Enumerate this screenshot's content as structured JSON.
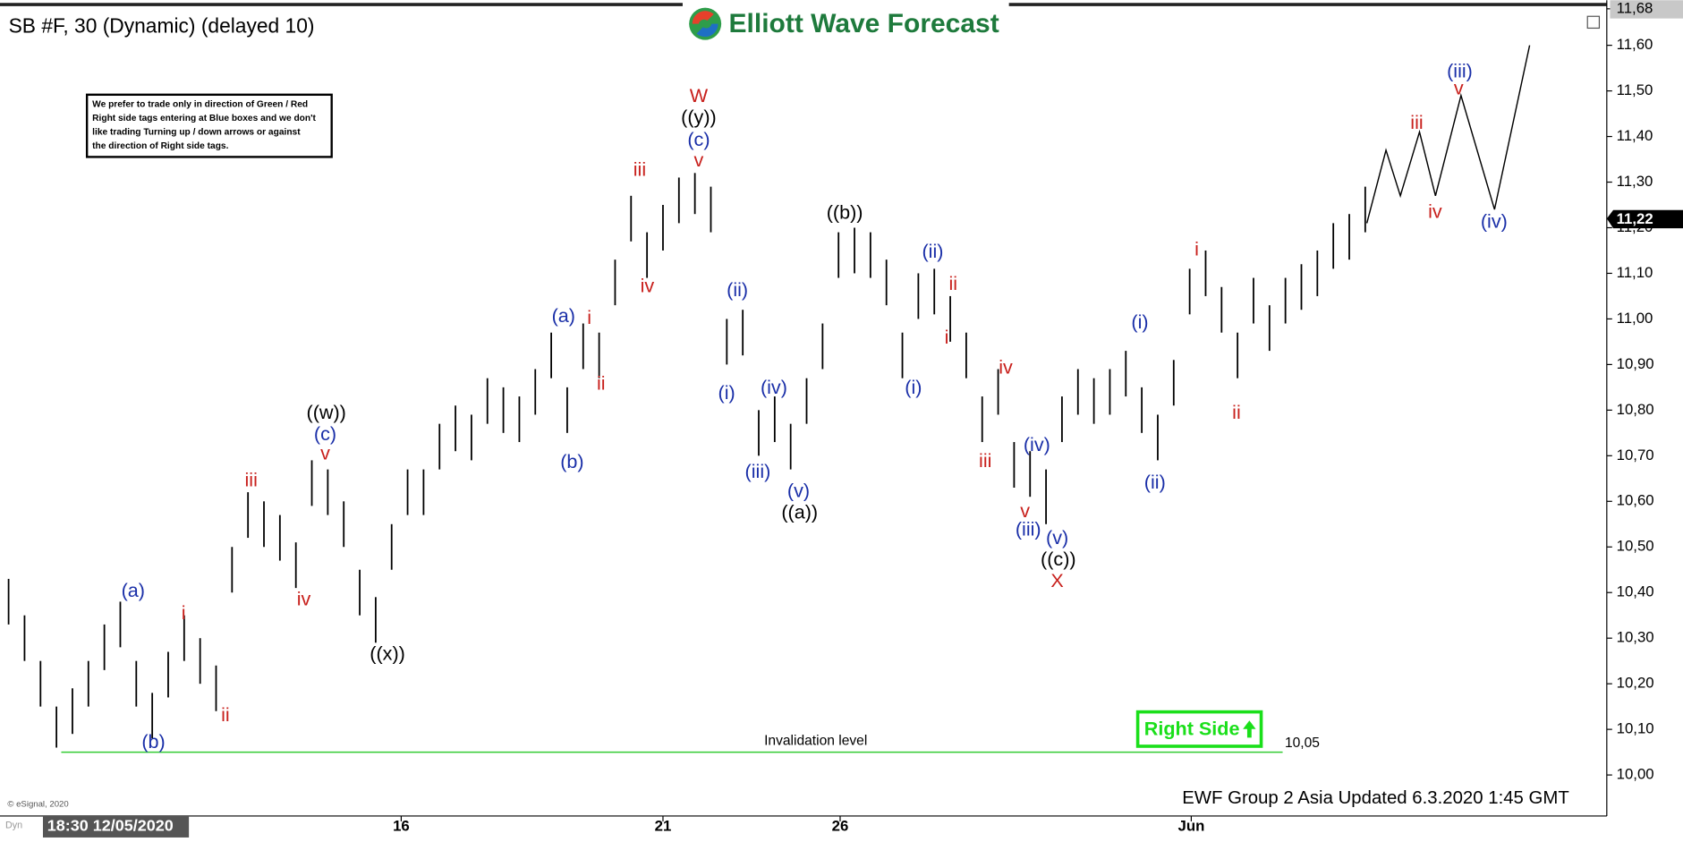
{
  "chart_data": {
    "type": "ohlc",
    "title": "SB #F, 30 (Dynamic) (delayed 10)",
    "logo": "Elliott Wave Forecast",
    "note": [
      "We prefer to trade only in direction of Green / Red",
      "Right side tags entering at Blue boxes and we don't",
      "like trading Turning up / down arrows or against",
      "the direction of Right side tags."
    ],
    "footer": "EWF Group 2 Asia Updated 6.3.2020 1:45 GMT",
    "copyright": "© eSignal, 2020",
    "corner_label": "Dyn",
    "cursor_time": "18:30 12/05/2020",
    "right_side": "Right Side",
    "bar_color": "#000000",
    "high": [
      10.43,
      10.35,
      10.25,
      10.15,
      10.19,
      10.25,
      10.33,
      10.38,
      10.25,
      10.18,
      10.27,
      10.35,
      10.3,
      10.24,
      10.5,
      10.62,
      10.6,
      10.57,
      10.51,
      10.69,
      10.67,
      10.6,
      10.45,
      10.39,
      10.55,
      10.67,
      10.67,
      10.77,
      10.81,
      10.79,
      10.87,
      10.85,
      10.83,
      10.89,
      10.97,
      10.85,
      10.99,
      10.97,
      11.13,
      11.27,
      11.19,
      11.25,
      11.31,
      11.32,
      11.29,
      11.0,
      11.02,
      10.8,
      10.83,
      10.77,
      10.87,
      10.99,
      11.19,
      11.2,
      11.19,
      11.13,
      10.97,
      11.1,
      11.11,
      11.05,
      10.97,
      10.83,
      10.89,
      10.73,
      10.71,
      10.67,
      10.83,
      10.89,
      10.87,
      10.89,
      10.93,
      10.85,
      10.79,
      10.91,
      11.11,
      11.15,
      11.07,
      10.97,
      11.09,
      11.03,
      11.09,
      11.12,
      11.15,
      11.21,
      11.23,
      11.29
    ],
    "low": [
      10.33,
      10.25,
      10.15,
      10.06,
      10.09,
      10.15,
      10.23,
      10.28,
      10.15,
      10.08,
      10.17,
      10.25,
      10.2,
      10.14,
      10.4,
      10.52,
      10.5,
      10.47,
      10.41,
      10.59,
      10.57,
      10.5,
      10.35,
      10.29,
      10.45,
      10.57,
      10.57,
      10.67,
      10.71,
      10.69,
      10.77,
      10.75,
      10.73,
      10.79,
      10.87,
      10.75,
      10.89,
      10.87,
      11.03,
      11.17,
      11.09,
      11.15,
      11.21,
      11.23,
      11.19,
      10.9,
      10.92,
      10.7,
      10.73,
      10.67,
      10.77,
      10.89,
      11.09,
      11.1,
      11.09,
      11.03,
      10.87,
      11.0,
      11.01,
      10.95,
      10.87,
      10.73,
      10.79,
      10.63,
      10.61,
      10.55,
      10.73,
      10.79,
      10.77,
      10.79,
      10.83,
      10.75,
      10.69,
      10.81,
      11.01,
      11.05,
      10.97,
      10.87,
      10.99,
      10.93,
      10.99,
      11.02,
      11.05,
      11.11,
      11.13,
      11.19
    ],
    "projection": {
      "x": [
        85.1,
        86.3,
        87.2,
        88.4,
        89.4,
        91.0,
        93.1,
        95.3
      ],
      "values": [
        11.21,
        11.37,
        11.27,
        11.41,
        11.27,
        11.49,
        11.24,
        11.6
      ]
    },
    "xlim": [
      0,
      100
    ],
    "xticks": [
      {
        "value": 24.6,
        "label": "16"
      },
      {
        "value": 41.0,
        "label": "21"
      },
      {
        "value": 52.1,
        "label": "26"
      },
      {
        "value": 74.1,
        "label": "Jun"
      }
    ],
    "ylim": [
      9.91,
      11.68
    ],
    "yticks": [
      {
        "value": 10.0,
        "label": "10,00"
      },
      {
        "value": 10.1,
        "label": "10,10"
      },
      {
        "value": 10.2,
        "label": "10,20"
      },
      {
        "value": 10.3,
        "label": "10,30"
      },
      {
        "value": 10.4,
        "label": "10,40"
      },
      {
        "value": 10.5,
        "label": "10,50"
      },
      {
        "value": 10.6,
        "label": "10,60"
      },
      {
        "value": 10.7,
        "label": "10,70"
      },
      {
        "value": 10.8,
        "label": "10,80"
      },
      {
        "value": 10.9,
        "label": "10,90"
      },
      {
        "value": 11.0,
        "label": "11,00"
      },
      {
        "value": 11.1,
        "label": "11,10"
      },
      {
        "value": 11.2,
        "label": "11,20"
      },
      {
        "value": 11.3,
        "label": "11,30"
      },
      {
        "value": 11.4,
        "label": "11,40"
      },
      {
        "value": 11.5,
        "label": "11,50"
      },
      {
        "value": 11.6,
        "label": "11,60"
      },
      {
        "value": 11.68,
        "label": "11,68"
      }
    ],
    "current_price": {
      "value": 11.22,
      "label": "11,22"
    },
    "invalidation": {
      "value": 10.05,
      "label": "10,05",
      "text": "Invalidation level",
      "color": "#33cc33"
    },
    "annotations": [
      {
        "text": "(a)",
        "color": "#1a2fa8"
      },
      {
        "text": "(b)",
        "color": "#1a2fa8"
      },
      {
        "text": "i",
        "color": "#c8201c"
      },
      {
        "text": "ii",
        "color": "#c8201c"
      },
      {
        "text": "iii",
        "color": "#c8201c"
      },
      {
        "text": "iv",
        "color": "#c8201c"
      },
      {
        "text": "v",
        "color": "#c8201c"
      },
      {
        "text": "(c)",
        "color": "#1a2fa8"
      },
      {
        "text": "((w))",
        "color": "#000000"
      },
      {
        "text": "((x))",
        "color": "#000000"
      },
      {
        "text": "(a)",
        "color": "#1a2fa8"
      },
      {
        "text": "(b)",
        "color": "#1a2fa8"
      },
      {
        "text": "i",
        "color": "#c8201c"
      },
      {
        "text": "ii",
        "color": "#c8201c"
      },
      {
        "text": "iii",
        "color": "#c8201c"
      },
      {
        "text": "iv",
        "color": "#c8201c"
      },
      {
        "text": "v",
        "color": "#c8201c"
      },
      {
        "text": "(c)",
        "color": "#1a2fa8"
      },
      {
        "text": "((y))",
        "color": "#000000"
      },
      {
        "text": "W",
        "color": "#c8201c"
      },
      {
        "text": "(ii)",
        "color": "#1a2fa8"
      },
      {
        "text": "(i)",
        "color": "#1a2fa8"
      },
      {
        "text": "(iv)",
        "color": "#1a2fa8"
      },
      {
        "text": "(iii)",
        "color": "#1a2fa8"
      },
      {
        "text": "(v)",
        "color": "#1a2fa8"
      },
      {
        "text": "((a))",
        "color": "#000000"
      },
      {
        "text": "((b))",
        "color": "#000000"
      },
      {
        "text": "(ii)",
        "color": "#1a2fa8"
      },
      {
        "text": "ii",
        "color": "#c8201c"
      },
      {
        "text": "i",
        "color": "#c8201c"
      },
      {
        "text": "(i)",
        "color": "#1a2fa8"
      },
      {
        "text": "iv",
        "color": "#c8201c"
      },
      {
        "text": "iii",
        "color": "#c8201c"
      },
      {
        "text": "(iv)",
        "color": "#1a2fa8"
      },
      {
        "text": "v",
        "color": "#c8201c"
      },
      {
        "text": "(iii)",
        "color": "#1a2fa8"
      },
      {
        "text": "(v)",
        "color": "#1a2fa8"
      },
      {
        "text": "((c))",
        "color": "#000000"
      },
      {
        "text": "X",
        "color": "#c8201c"
      },
      {
        "text": "(i)",
        "color": "#1a2fa8"
      },
      {
        "text": "(ii)",
        "color": "#1a2fa8"
      },
      {
        "text": "i",
        "color": "#c8201c"
      },
      {
        "text": "ii",
        "color": "#c8201c"
      },
      {
        "text": "iii",
        "color": "#c8201c"
      },
      {
        "text": "iv",
        "color": "#c8201c"
      },
      {
        "text": "v",
        "color": "#c8201c"
      },
      {
        "text": "(iii)",
        "color": "#1a2fa8"
      },
      {
        "text": "(iv)",
        "color": "#1a2fa8"
      }
    ]
  }
}
